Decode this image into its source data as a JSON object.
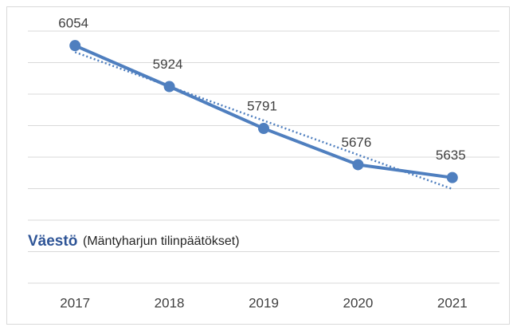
{
  "chart_data": {
    "type": "line",
    "title": "Väestö",
    "subtitle": "(Mäntyharjun tilinpäätökset)",
    "categories": [
      "2017",
      "2018",
      "2019",
      "2020",
      "2021"
    ],
    "series": [
      {
        "name": "Väestö",
        "color": "#4f7fbf",
        "values": [
          6054,
          5924,
          5791,
          5676,
          5635
        ]
      }
    ],
    "ylim": [
      5300,
      6100
    ],
    "yticks": [
      5300,
      5400,
      5500,
      5600,
      5700,
      5800,
      5900,
      6000,
      6100
    ],
    "grid": true,
    "trendline": true,
    "data_labels": true
  }
}
